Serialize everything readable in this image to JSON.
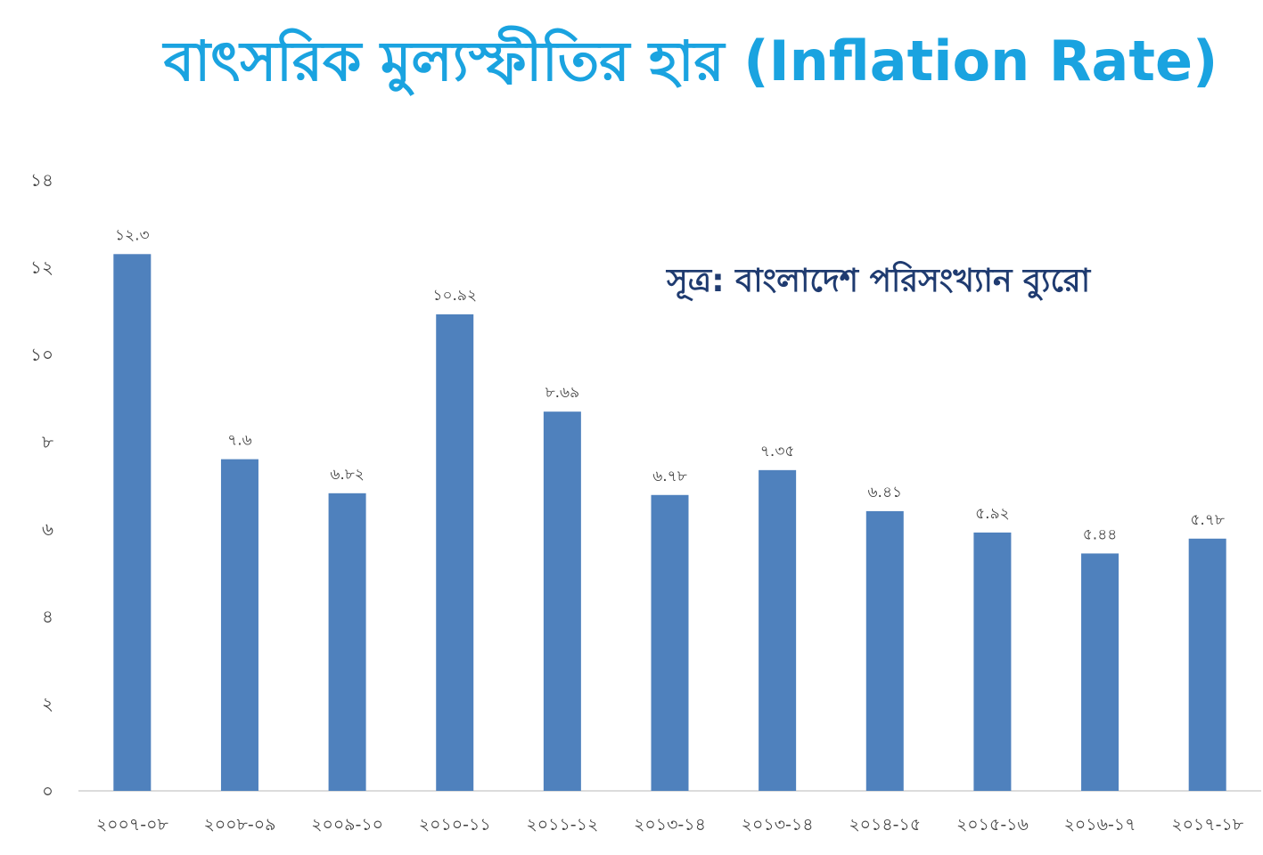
{
  "title": "বাৎসরিক মুল্যস্ফীতির হার (Inflation Rate)",
  "source": "সূত্র: বাংলাদেশ পরিসংখ্যান ব্যুরো",
  "colors": {
    "title": "#1aa3e0",
    "bar": "#4f81bd",
    "source": "#1f3b70"
  },
  "chart_data": {
    "type": "bar",
    "title": "বাৎসরিক মুল্যস্ফীতির হার (Inflation Rate)",
    "xlabel": "",
    "ylabel": "",
    "ylim": [
      0,
      14
    ],
    "grid": false,
    "legend": "none",
    "categories": [
      "২০০৭-০৮",
      "২০০৮-০৯",
      "২০০৯-১০",
      "২০১০-১১",
      "২০১১-১২",
      "২০১৩-১৪",
      "২০১৩-১৪",
      "২০১৪-১৫",
      "২০১৫-১৬",
      "২০১৬-১৭",
      "২০১৭-১৮"
    ],
    "values": [
      12.3,
      7.6,
      6.82,
      10.92,
      8.69,
      6.78,
      7.35,
      6.41,
      5.92,
      5.44,
      5.78
    ],
    "data_labels": [
      "১২.৩",
      "৭.৬",
      "৬.৮২",
      "১০.৯২",
      "৮.৬৯",
      "৬.৭৮",
      "৭.৩৫",
      "৬.৪১",
      "৫.৯২",
      "৫.৪৪",
      "৫.৭৮"
    ],
    "yticks": [
      0,
      2,
      4,
      6,
      8,
      10,
      12,
      14
    ],
    "ytick_labels": [
      "০",
      "২",
      "৪",
      "৬",
      "৮",
      "১০",
      "১২",
      "১৪"
    ]
  }
}
